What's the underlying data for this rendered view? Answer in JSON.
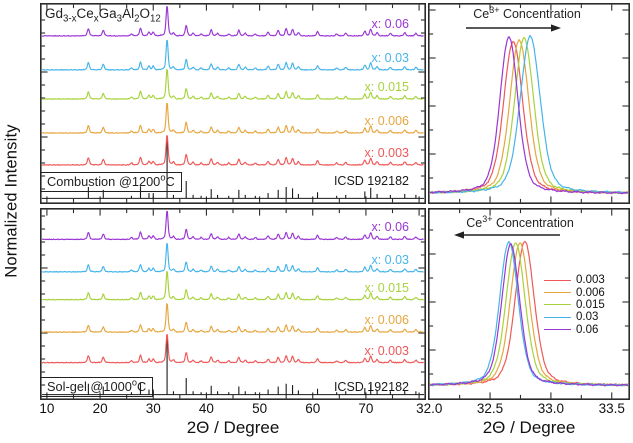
{
  "figure": {
    "y_axis_title": "Normalized Intensity",
    "x_axis_title_left": "2Θ / Degree",
    "x_axis_title_right": "2Θ / Degree",
    "background_color": "#ffffff",
    "frame_color": "#2b2b2b",
    "text_color": "#111111"
  },
  "chart_data": [
    {
      "id": "combustion-full-pattern",
      "type": "line",
      "panel": "top-left",
      "method_label": "Combustion @1200°C",
      "method_label_segments": [
        {
          "text": "Combustion @1200"
        },
        {
          "sup": "o"
        },
        {
          "text": "C"
        }
      ],
      "formula_label": "Gd3-xCexGa3Al2O12",
      "formula_segments": [
        {
          "text": "Gd"
        },
        {
          "sub": "3-x"
        },
        {
          "text": "Ce"
        },
        {
          "sub": "x"
        },
        {
          "text": "Ga"
        },
        {
          "sub": "3"
        },
        {
          "text": "Al"
        },
        {
          "sub": "2"
        },
        {
          "text": "O"
        },
        {
          "sub": "12"
        }
      ],
      "reference_label": "ICSD 192182",
      "reference_color": "#1a1a1a",
      "xlim": [
        8.7,
        81.3
      ],
      "xticks": [
        10,
        20,
        30,
        40,
        50,
        60,
        70
      ],
      "series": [
        {
          "label": "x: 0.003",
          "x": 0.003,
          "color": "#ef5858"
        },
        {
          "label": "x: 0.006",
          "x": 0.006,
          "color": "#e6a63f"
        },
        {
          "label": "x: 0.015",
          "x": 0.015,
          "color": "#a8d23c"
        },
        {
          "label": "x: 0.03",
          "x": 0.03,
          "color": "#46b4ea"
        },
        {
          "label": "x: 0.06",
          "x": 0.06,
          "color": "#9a36d4"
        }
      ],
      "peaks_2theta_intensity": [
        [
          17.8,
          13
        ],
        [
          20.6,
          9
        ],
        [
          25.9,
          2
        ],
        [
          27.6,
          14
        ],
        [
          29.2,
          5
        ],
        [
          30.0,
          5
        ],
        [
          32.6,
          100
        ],
        [
          33.8,
          3
        ],
        [
          36.2,
          22
        ],
        [
          37.5,
          3
        ],
        [
          39.0,
          2
        ],
        [
          40.9,
          10
        ],
        [
          42.1,
          3
        ],
        [
          44.2,
          2
        ],
        [
          46.1,
          9
        ],
        [
          47.3,
          3
        ],
        [
          49.2,
          2
        ],
        [
          51.6,
          5
        ],
        [
          53.5,
          9
        ],
        [
          55.0,
          13
        ],
        [
          56.2,
          11
        ],
        [
          57.3,
          4
        ],
        [
          60.9,
          6
        ],
        [
          64.5,
          2
        ],
        [
          66.2,
          3
        ],
        [
          69.8,
          7
        ],
        [
          70.9,
          12
        ],
        [
          72.1,
          4
        ],
        [
          74.6,
          3
        ],
        [
          77.3,
          4
        ],
        [
          79.4,
          3
        ]
      ]
    },
    {
      "id": "solgel-full-pattern",
      "type": "line",
      "panel": "bottom-left",
      "method_label": "Sol-gel @1000°C",
      "method_label_segments": [
        {
          "text": "Sol-gel @1000"
        },
        {
          "sup": "o"
        },
        {
          "text": "C"
        }
      ],
      "reference_label": "ICSD 192182",
      "reference_color": "#1a1a1a",
      "xlabel": "2Θ / Degree",
      "xlim": [
        8.7,
        81.3
      ],
      "xticks": [
        {
          "v": 10,
          "label": "10"
        },
        {
          "v": 20,
          "label": "20"
        },
        {
          "v": 30,
          "label": "30"
        },
        {
          "v": 40,
          "label": "40"
        },
        {
          "v": 50,
          "label": "50"
        },
        {
          "v": 60,
          "label": "60"
        },
        {
          "v": 70,
          "label": "70"
        }
      ],
      "series": [
        {
          "label": "x: 0.003",
          "x": 0.003,
          "color": "#ef5858"
        },
        {
          "label": "x: 0.006",
          "x": 0.006,
          "color": "#e6a63f"
        },
        {
          "label": "x: 0.015",
          "x": 0.015,
          "color": "#a8d23c"
        },
        {
          "label": "x: 0.03",
          "x": 0.03,
          "color": "#46b4ea"
        },
        {
          "label": "x: 0.06",
          "x": 0.06,
          "color": "#9a36d4"
        }
      ],
      "peaks_2theta_intensity": [
        [
          17.8,
          13
        ],
        [
          20.6,
          9
        ],
        [
          25.9,
          2
        ],
        [
          27.6,
          14
        ],
        [
          29.2,
          5
        ],
        [
          30.0,
          5
        ],
        [
          32.6,
          100
        ],
        [
          33.8,
          3
        ],
        [
          36.2,
          22
        ],
        [
          37.5,
          3
        ],
        [
          39.0,
          2
        ],
        [
          40.9,
          10
        ],
        [
          42.1,
          3
        ],
        [
          44.2,
          2
        ],
        [
          46.1,
          9
        ],
        [
          47.3,
          3
        ],
        [
          49.2,
          2
        ],
        [
          51.6,
          5
        ],
        [
          53.5,
          9
        ],
        [
          55.0,
          13
        ],
        [
          56.2,
          11
        ],
        [
          57.3,
          4
        ],
        [
          60.9,
          6
        ],
        [
          64.5,
          2
        ],
        [
          66.2,
          3
        ],
        [
          69.8,
          7
        ],
        [
          70.9,
          12
        ],
        [
          72.1,
          4
        ],
        [
          74.6,
          3
        ],
        [
          77.3,
          4
        ],
        [
          79.4,
          3
        ]
      ]
    },
    {
      "id": "combustion-zoom-main-peak",
      "type": "line",
      "panel": "top-right",
      "annotation": "Ce3+ Concentration",
      "annotation_segments": [
        {
          "text": "Ce"
        },
        {
          "sup": "3+"
        },
        {
          "text": " Concentration"
        }
      ],
      "arrow_direction": "right",
      "xlim": [
        31.99,
        33.65
      ],
      "xticks": [
        32.0,
        32.5,
        33.0,
        33.5
      ],
      "series": [
        {
          "label": "0.003",
          "color": "#ef5858",
          "peak_center": 32.69,
          "amplitude": 0.97,
          "fwhm": 0.18
        },
        {
          "label": "0.006",
          "color": "#e6a63f",
          "peak_center": 32.74,
          "amplitude": 0.98,
          "fwhm": 0.18
        },
        {
          "label": "0.015",
          "color": "#a8d23c",
          "peak_center": 32.78,
          "amplitude": 0.99,
          "fwhm": 0.18
        },
        {
          "label": "0.03",
          "color": "#46b4ea",
          "peak_center": 32.83,
          "amplitude": 1.0,
          "fwhm": 0.19
        },
        {
          "label": "0.06",
          "color": "#9a36d4",
          "peak_center": 32.655,
          "amplitude": 1.0,
          "fwhm": 0.17
        }
      ]
    },
    {
      "id": "solgel-zoom-main-peak",
      "type": "line",
      "panel": "bottom-right",
      "annotation": "Ce3+ Concentration",
      "annotation_segments": [
        {
          "text": "Ce"
        },
        {
          "sup": "3+"
        },
        {
          "text": " Concentration"
        }
      ],
      "arrow_direction": "left",
      "xlabel": "2Θ / Degree",
      "show_legend": true,
      "xlim": [
        31.99,
        33.65
      ],
      "xticks": [
        {
          "v": 32.0,
          "label": "32.0"
        },
        {
          "v": 32.5,
          "label": "32.5"
        },
        {
          "v": 33.0,
          "label": "33.0"
        },
        {
          "v": 33.5,
          "label": "33.5"
        }
      ],
      "series": [
        {
          "label": "0.003",
          "color": "#ef5858",
          "peak_center": 32.785,
          "amplitude": 1.0,
          "fwhm": 0.18
        },
        {
          "label": "0.006",
          "color": "#e6a63f",
          "peak_center": 32.745,
          "amplitude": 0.99,
          "fwhm": 0.18
        },
        {
          "label": "0.015",
          "color": "#a8d23c",
          "peak_center": 32.71,
          "amplitude": 0.99,
          "fwhm": 0.18
        },
        {
          "label": "0.03",
          "color": "#46b4ea",
          "peak_center": 32.655,
          "amplitude": 1.0,
          "fwhm": 0.175
        },
        {
          "label": "0.06",
          "color": "#9a36d4",
          "peak_center": 32.67,
          "amplitude": 0.98,
          "fwhm": 0.17
        }
      ]
    }
  ]
}
